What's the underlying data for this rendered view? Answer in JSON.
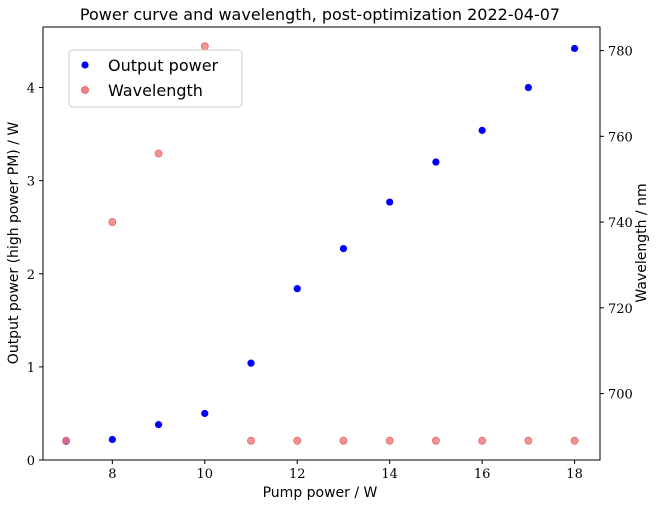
{
  "chart_data": {
    "type": "scatter",
    "title": "Power curve and wavelength, post-optimization 2022-04-07",
    "xlabel": "Pump power / W",
    "ylabel_left": "Output power (high power PM) / W",
    "ylabel_right": "Wavelength / nm",
    "xlim": [
      6.5,
      18.55
    ],
    "ylim_left": [
      0,
      4.65
    ],
    "ylim_right": [
      684.5,
      785.5
    ],
    "x_ticks": [
      8,
      10,
      12,
      14,
      16,
      18
    ],
    "y_left_ticks": [
      0,
      1,
      2,
      3,
      4
    ],
    "y_right_ticks": [
      700,
      720,
      740,
      760,
      780
    ],
    "legend_position": "top-left",
    "grid": false,
    "series": [
      {
        "name": "Output power",
        "axis": "left",
        "color": "#0000ff",
        "x": [
          7,
          8,
          9,
          10,
          11,
          12,
          13,
          14,
          15,
          16,
          17,
          18
        ],
        "y": [
          0.2,
          0.22,
          0.38,
          0.5,
          1.04,
          1.84,
          2.27,
          2.77,
          3.2,
          3.54,
          4.0,
          4.42
        ]
      },
      {
        "name": "Wavelength",
        "axis": "right",
        "color": "#f08080",
        "x": [
          7,
          8,
          9,
          10,
          11,
          12,
          13,
          14,
          15,
          16,
          17,
          18
        ],
        "y": [
          689,
          740,
          756,
          781,
          689,
          689,
          689,
          689,
          689,
          689,
          689,
          689
        ]
      }
    ]
  }
}
